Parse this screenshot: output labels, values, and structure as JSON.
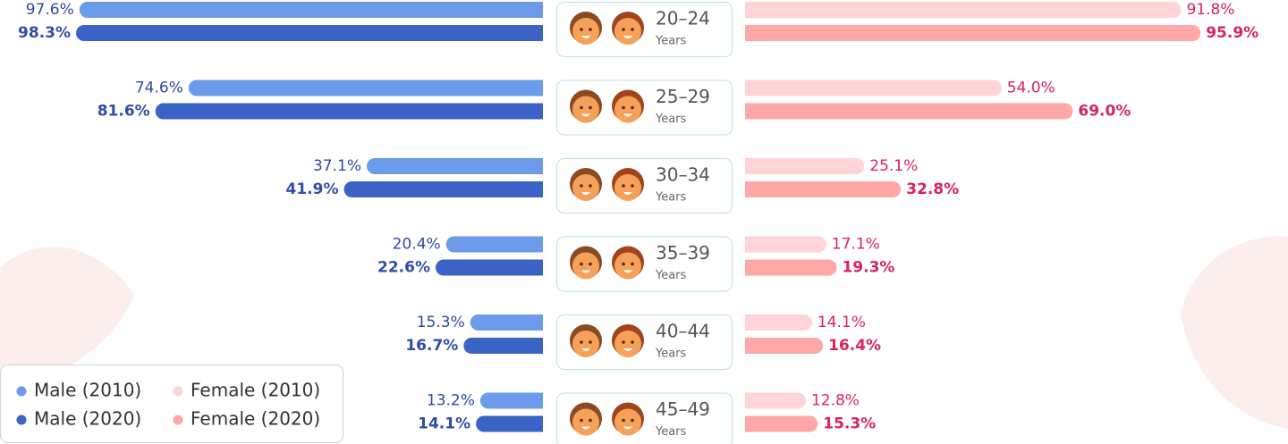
{
  "chart_data": {
    "type": "butterfly-bar",
    "categories": [
      "20–24",
      "25–29",
      "30–34",
      "35–39",
      "40–44",
      "45–49"
    ],
    "category_unit": "Years",
    "series": [
      {
        "name": "Male (2010)",
        "color": "#6b9bea",
        "label_color": "#2f4b9c",
        "values": [
          97.6,
          74.6,
          37.1,
          20.4,
          15.3,
          13.2
        ],
        "value_labels": [
          "97.6%",
          "74.6%",
          "37.1%",
          "20.4%",
          "15.3%",
          "13.2%"
        ]
      },
      {
        "name": "Male (2020)",
        "color": "#3b62c5",
        "label_color": "#2f4ea6",
        "values": [
          98.3,
          81.6,
          41.9,
          22.6,
          16.7,
          14.1
        ],
        "value_labels": [
          "98.3%",
          "81.6%",
          "41.9%",
          "22.6%",
          "16.7%",
          "14.1%"
        ]
      },
      {
        "name": "Female (2010)",
        "color": "#ffd4d7",
        "label_color": "#d8245a",
        "values": [
          91.8,
          54.0,
          25.1,
          17.1,
          14.1,
          12.8
        ],
        "value_labels": [
          "91.8%",
          "54.0%",
          "25.1%",
          "17.1%",
          "14.1%",
          "12.8%"
        ]
      },
      {
        "name": "Female (2020)",
        "color": "#ffa7a7",
        "label_color": "#d8245a",
        "values": [
          95.9,
          69.0,
          32.8,
          19.3,
          16.4,
          15.3
        ],
        "value_labels": [
          "95.9%",
          "69.0%",
          "32.8%",
          "19.3%",
          "16.4%",
          "15.3%"
        ]
      }
    ]
  }
}
